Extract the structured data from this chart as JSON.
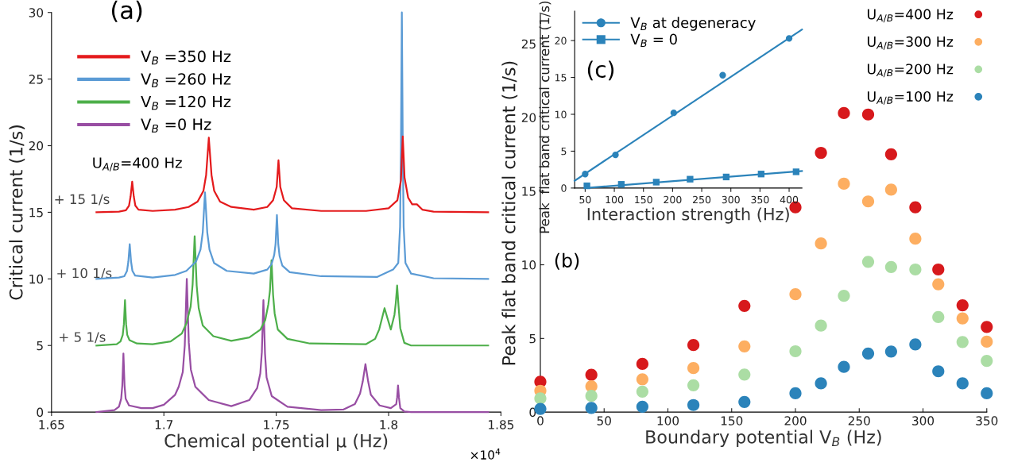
{
  "chart_data": [
    {
      "type": "line",
      "xlabel": "Chemical potential μ (Hz)",
      "ylabel": "Critical current (1/s)",
      "annotations": [
        "(a)",
        "U$_{A/B}$=400 Hz",
        "+ 15 1/s",
        "+ 10 1/s",
        "+ 5 1/s",
        "×10$^{4}$"
      ],
      "xlim": [
        1.65,
        1.85
      ],
      "xticks": [
        1.65,
        1.7,
        1.75,
        1.8,
        1.85
      ],
      "ylim": [
        0,
        30
      ],
      "yticks": [
        0,
        5,
        10,
        15,
        20,
        25,
        30
      ],
      "grid": false,
      "legend": "top left",
      "series": [
        {
          "name": "V$_{B}$ =350 Hz",
          "color": "#e41a1c",
          "x": [
            1.67,
            1.68,
            1.6831,
            1.6845,
            1.6852,
            1.6859,
            1.6866,
            1.6873,
            1.6887,
            1.695,
            1.705,
            1.711,
            1.715,
            1.7176,
            1.7188,
            1.72,
            1.7212,
            1.7224,
            1.725,
            1.73,
            1.74,
            1.746,
            1.7486,
            1.7502,
            1.751,
            1.7518,
            1.7534,
            1.757,
            1.77,
            1.79,
            1.8,
            1.8039,
            1.8055,
            1.8063,
            1.8071,
            1.8087,
            1.8105,
            1.8126,
            1.815,
            1.82,
            1.8443
          ],
          "values": [
            15.0,
            15.05,
            15.15,
            15.5,
            16.2,
            17.3,
            16.2,
            15.5,
            15.2,
            15.1,
            15.2,
            15.4,
            15.8,
            16.6,
            17.8,
            20.6,
            17.8,
            16.6,
            15.8,
            15.4,
            15.2,
            15.4,
            15.9,
            16.9,
            18.9,
            16.9,
            15.9,
            15.3,
            15.1,
            15.1,
            15.3,
            15.9,
            17.4,
            20.7,
            17.6,
            16.1,
            15.6,
            15.6,
            15.2,
            15.05,
            15.0
          ]
        },
        {
          "name": "V$_{B}$ =260 Hz",
          "color": "#5b9bd5",
          "x": [
            1.67,
            1.68,
            1.6824,
            1.6836,
            1.6842,
            1.6848,
            1.6854,
            1.686,
            1.6872,
            1.695,
            1.705,
            1.71,
            1.7143,
            1.7163,
            1.7173,
            1.7183,
            1.7193,
            1.7203,
            1.7223,
            1.728,
            1.74,
            1.746,
            1.7479,
            1.7491,
            1.7497,
            1.7503,
            1.7509,
            1.7515,
            1.7527,
            1.756,
            1.77,
            1.795,
            1.802,
            1.8043,
            1.8051,
            1.8055,
            1.8059,
            1.8063,
            1.8067,
            1.8075,
            1.81,
            1.82,
            1.8443
          ],
          "values": [
            10.0,
            10.1,
            10.2,
            10.6,
            11.3,
            12.6,
            11.3,
            10.6,
            10.25,
            10.1,
            10.3,
            10.6,
            11.3,
            12.2,
            13.5,
            16.5,
            13.5,
            12.2,
            11.2,
            10.6,
            10.4,
            10.7,
            11.1,
            11.8,
            12.6,
            14.8,
            12.6,
            11.7,
            11.0,
            10.5,
            10.2,
            10.15,
            10.7,
            11.2,
            13.9,
            20.0,
            30.0,
            20.0,
            13.9,
            11.2,
            10.4,
            10.05,
            10.0
          ]
        },
        {
          "name": "V$_{B}$ =120 Hz",
          "color": "#4daf4a",
          "x": [
            1.67,
            1.679,
            1.6807,
            1.6817,
            1.6822,
            1.6827,
            1.6832,
            1.6837,
            1.6847,
            1.688,
            1.695,
            1.703,
            1.708,
            1.7101,
            1.7119,
            1.7128,
            1.7137,
            1.7146,
            1.7155,
            1.7173,
            1.722,
            1.73,
            1.738,
            1.743,
            1.7451,
            1.7465,
            1.7472,
            1.7479,
            1.7486,
            1.7493,
            1.7507,
            1.755,
            1.765,
            1.79,
            1.794,
            1.7958,
            1.797,
            1.7982,
            1.7994,
            1.801,
            1.8026,
            1.8032,
            1.8038,
            1.8044,
            1.8052,
            1.807,
            1.81,
            1.8443
          ],
          "values": [
            5.0,
            5.1,
            5.3,
            5.8,
            6.6,
            8.4,
            6.6,
            5.8,
            5.4,
            5.15,
            5.1,
            5.3,
            5.9,
            6.7,
            7.9,
            9.6,
            13.2,
            9.5,
            7.8,
            6.5,
            5.7,
            5.35,
            5.6,
            6.2,
            6.9,
            8.1,
            9.1,
            11.4,
            8.8,
            7.4,
            6.2,
            5.5,
            5.15,
            5.1,
            5.5,
            6.2,
            7.0,
            7.8,
            7.1,
            6.2,
            7.3,
            8.2,
            9.5,
            8.0,
            6.3,
            5.2,
            5.0,
            5.0
          ]
        },
        {
          "name": "V$_{B}$ =0 Hz",
          "color": "#984ea3",
          "x": [
            1.67,
            1.678,
            1.68,
            1.681,
            1.6815,
            1.682,
            1.6825,
            1.683,
            1.6845,
            1.69,
            1.695,
            1.7,
            1.705,
            1.7066,
            1.7084,
            1.7093,
            1.7102,
            1.7111,
            1.712,
            1.714,
            1.72,
            1.73,
            1.738,
            1.7415,
            1.7429,
            1.7436,
            1.7443,
            1.745,
            1.7457,
            1.748,
            1.755,
            1.77,
            1.78,
            1.785,
            1.7873,
            1.7885,
            1.7897,
            1.7909,
            1.7921,
            1.796,
            1.801,
            1.8034,
            1.8038,
            1.8042,
            1.8046,
            1.8052,
            1.807,
            1.81,
            1.8443
          ],
          "values": [
            0.0,
            0.15,
            0.4,
            1.0,
            2.0,
            4.4,
            2.0,
            1.0,
            0.5,
            0.3,
            0.3,
            0.55,
            1.3,
            1.9,
            3.0,
            5.0,
            10.0,
            5.2,
            3.2,
            1.9,
            0.9,
            0.45,
            0.9,
            1.8,
            2.9,
            4.5,
            8.4,
            4.4,
            2.6,
            1.2,
            0.4,
            0.15,
            0.2,
            0.6,
            1.4,
            2.3,
            3.6,
            2.3,
            1.3,
            0.5,
            0.3,
            0.6,
            1.1,
            2.0,
            1.1,
            0.3,
            0.05,
            0.0,
            0.0
          ]
        }
      ]
    },
    {
      "type": "scatter",
      "xlabel": "Boundary potential V$_{B}$ (Hz)",
      "ylabel": "Peak flat band critical current (1/s)",
      "annotations": [
        "(b)"
      ],
      "xlim": [
        0,
        350
      ],
      "xticks": [
        0,
        50,
        100,
        150,
        200,
        250,
        300,
        350
      ],
      "ylim": [
        0,
        27
      ],
      "yticks": [
        0,
        5,
        10,
        15,
        20,
        25
      ],
      "grid": false,
      "legend": "top right",
      "marker": "circle",
      "x": [
        0,
        40,
        80,
        120,
        160,
        200,
        220,
        238,
        257,
        275,
        294,
        312,
        331,
        350
      ],
      "series": [
        {
          "name": "U$_{A/B}$=400 Hz",
          "color": "#d7191c",
          "values": [
            2.06,
            2.53,
            3.27,
            4.55,
            7.21,
            13.9,
            17.6,
            20.3,
            20.2,
            17.5,
            13.9,
            9.68,
            7.25,
            5.78
          ]
        },
        {
          "name": "U$_{A/B}$=300 Hz",
          "color": "#fdae61",
          "values": [
            1.45,
            1.75,
            2.23,
            2.99,
            4.46,
            8.0,
            11.45,
            15.5,
            14.3,
            15.1,
            11.77,
            8.68,
            6.36,
            4.78
          ]
        },
        {
          "name": "U$_{A/B}$=200 Hz",
          "color": "#abdda4",
          "values": [
            0.93,
            1.1,
            1.39,
            1.82,
            2.55,
            4.13,
            5.87,
            7.9,
            10.2,
            9.85,
            9.68,
            6.45,
            4.76,
            3.48
          ]
        },
        {
          "name": "U$_{A/B}$=100 Hz",
          "color": "#2b83ba",
          "values": [
            0.22,
            0.28,
            0.37,
            0.48,
            0.69,
            1.28,
            1.95,
            3.07,
            3.98,
            4.11,
            4.59,
            2.77,
            1.95,
            1.28
          ]
        }
      ]
    },
    {
      "type": "scatter",
      "xlabel": "Interaction strength (Hz)",
      "ylabel": "Peak  flat band critical current (1/s)",
      "annotations": [
        "(c)"
      ],
      "xlim": [
        32,
        422
      ],
      "xticks": [
        50,
        100,
        150,
        200,
        250,
        300,
        350,
        400
      ],
      "ylim": [
        0,
        24
      ],
      "yticks": [
        0,
        5,
        10,
        15,
        20
      ],
      "grid": false,
      "legend": "top left",
      "series": [
        {
          "name": "V$_{B}$ at degeneracy",
          "color": "#2b83ba",
          "marker": "circle",
          "x": [
            50,
            102,
            202,
            286,
            400
          ],
          "values": [
            1.9,
            4.5,
            10.2,
            15.3,
            20.3
          ]
        },
        {
          "name": "V$_{B}$ = 0",
          "color": "#2b83ba",
          "marker": "square",
          "x": [
            53,
            112,
            172,
            230,
            292,
            352,
            412
          ],
          "values": [
            0.3,
            0.5,
            0.8,
            1.2,
            1.5,
            1.9,
            2.2
          ]
        },
        {
          "type": "line",
          "color": "#2b83ba",
          "x": [
            32,
            422
          ],
          "values": [
            1.0,
            21.5
          ]
        },
        {
          "type": "line",
          "color": "#2b83ba",
          "x": [
            50,
            422
          ],
          "values": [
            0,
            2.3
          ]
        }
      ]
    }
  ]
}
